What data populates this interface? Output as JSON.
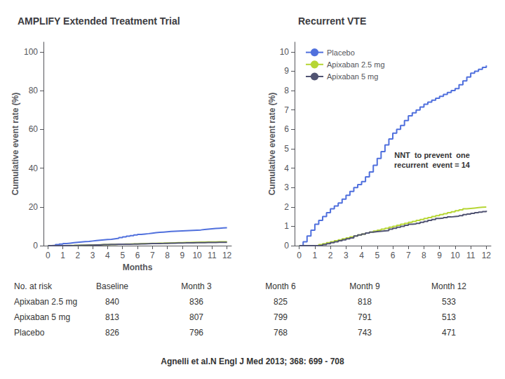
{
  "chart_data": [
    {
      "type": "line",
      "title": "AMPLIFY Extended Treatment Trial",
      "x_label": "Months",
      "y_label": "Cumulative event rate (%)",
      "x": [
        0,
        0.25,
        0.5,
        0.75,
        1.0,
        1.25,
        1.5,
        1.75,
        2.0,
        2.25,
        2.5,
        2.75,
        3.0,
        3.25,
        3.5,
        3.75,
        4.0,
        4.25,
        4.5,
        4.75,
        5.0,
        5.25,
        5.5,
        5.75,
        6.0,
        6.25,
        6.5,
        6.75,
        7.0,
        7.25,
        7.5,
        7.75,
        8.0,
        8.25,
        8.5,
        8.75,
        9.0,
        9.25,
        9.5,
        9.75,
        10.0,
        10.25,
        10.5,
        10.75,
        11.0,
        11.25,
        11.5,
        11.75,
        12.0
      ],
      "series": [
        {
          "name": "Placebo",
          "values": [
            0,
            0.2,
            0.5,
            0.8,
            1.1,
            1.3,
            1.5,
            1.7,
            1.9,
            2.05,
            2.2,
            2.4,
            2.6,
            2.8,
            3.0,
            3.15,
            3.3,
            3.55,
            3.8,
            4.15,
            4.5,
            4.85,
            5.2,
            5.5,
            5.8,
            6.0,
            6.2,
            6.45,
            6.7,
            6.85,
            7.0,
            7.15,
            7.3,
            7.4,
            7.5,
            7.6,
            7.7,
            7.8,
            7.9,
            8.0,
            8.1,
            8.3,
            8.5,
            8.7,
            8.9,
            9.0,
            9.1,
            9.2,
            9.3
          ]
        },
        {
          "name": "Apixaban 2.5 mg",
          "values": [
            0,
            0.0,
            0.0,
            0.0,
            0.0,
            0.05,
            0.1,
            0.15,
            0.2,
            0.25,
            0.3,
            0.35,
            0.4,
            0.45,
            0.5,
            0.55,
            0.6,
            0.65,
            0.7,
            0.75,
            0.8,
            0.85,
            0.9,
            0.95,
            1.0,
            1.05,
            1.1,
            1.15,
            1.2,
            1.25,
            1.3,
            1.35,
            1.4,
            1.45,
            1.5,
            1.55,
            1.6,
            1.65,
            1.7,
            1.75,
            1.8,
            1.85,
            1.9,
            1.92,
            1.94,
            1.96,
            1.98,
            1.99,
            2.0
          ]
        },
        {
          "name": "Apixaban 5 mg",
          "values": [
            0,
            0.0,
            0.0,
            0.0,
            0.0,
            0.02,
            0.05,
            0.1,
            0.15,
            0.2,
            0.25,
            0.3,
            0.35,
            0.4,
            0.5,
            0.55,
            0.6,
            0.65,
            0.7,
            0.72,
            0.74,
            0.76,
            0.78,
            0.85,
            0.9,
            0.95,
            1.0,
            1.05,
            1.1,
            1.12,
            1.15,
            1.2,
            1.25,
            1.3,
            1.35,
            1.4,
            1.42,
            1.45,
            1.48,
            1.5,
            1.52,
            1.55,
            1.6,
            1.63,
            1.67,
            1.7,
            1.73,
            1.76,
            1.8
          ]
        }
      ],
      "line_style": "step-post",
      "xlim": [
        -0.3,
        12.3
      ],
      "xticks": [
        0,
        1,
        2,
        3,
        4,
        5,
        6,
        7,
        8,
        9,
        10,
        11,
        12
      ],
      "ylim": [
        0,
        105
      ],
      "yticks": [
        0,
        20,
        40,
        60,
        80,
        100
      ],
      "grid": false,
      "at_risk": {
        "header": [
          "No. at risk",
          "Baseline",
          "Month 3",
          "Month 6",
          "Month 9",
          "Month 12"
        ],
        "rows": [
          {
            "label": "Apixaban 2.5 mg",
            "values": [
              840,
              836,
              825,
              818,
              533
            ]
          },
          {
            "label": "Apixaban 5 mg",
            "values": [
              813,
              807,
              799,
              791,
              513
            ]
          },
          {
            "label": "Placebo",
            "values": [
              826,
              796,
              768,
              743,
              471
            ]
          }
        ]
      },
      "caption": "Agnelli et al.N Engl J Med 2013; 368: 699 - 708"
    },
    {
      "type": "line",
      "title": "Recurrent VTE",
      "y_label": "Cumulative event rate (%)",
      "x": [
        0,
        0.25,
        0.5,
        0.75,
        1.0,
        1.25,
        1.5,
        1.75,
        2.0,
        2.25,
        2.5,
        2.75,
        3.0,
        3.25,
        3.5,
        3.75,
        4.0,
        4.25,
        4.5,
        4.75,
        5.0,
        5.25,
        5.5,
        5.75,
        6.0,
        6.25,
        6.5,
        6.75,
        7.0,
        7.25,
        7.5,
        7.75,
        8.0,
        8.25,
        8.5,
        8.75,
        9.0,
        9.25,
        9.5,
        9.75,
        10.0,
        10.25,
        10.5,
        10.75,
        11.0,
        11.25,
        11.5,
        11.75,
        12.0
      ],
      "series": [
        {
          "name": "Placebo",
          "values": [
            0,
            0.2,
            0.5,
            0.8,
            1.1,
            1.3,
            1.5,
            1.7,
            1.9,
            2.05,
            2.2,
            2.4,
            2.6,
            2.8,
            3.0,
            3.15,
            3.3,
            3.55,
            3.8,
            4.15,
            4.5,
            4.85,
            5.2,
            5.5,
            5.8,
            6.0,
            6.2,
            6.45,
            6.7,
            6.85,
            7.0,
            7.15,
            7.3,
            7.4,
            7.5,
            7.6,
            7.7,
            7.8,
            7.9,
            8.0,
            8.1,
            8.3,
            8.5,
            8.7,
            8.9,
            9.0,
            9.1,
            9.2,
            9.3
          ]
        },
        {
          "name": "Apixaban 2.5 mg",
          "values": [
            0,
            0.0,
            0.0,
            0.0,
            0.0,
            0.05,
            0.1,
            0.15,
            0.2,
            0.25,
            0.3,
            0.35,
            0.4,
            0.45,
            0.5,
            0.55,
            0.6,
            0.65,
            0.7,
            0.75,
            0.8,
            0.85,
            0.9,
            0.95,
            1.0,
            1.05,
            1.1,
            1.15,
            1.2,
            1.25,
            1.3,
            1.35,
            1.4,
            1.45,
            1.5,
            1.55,
            1.6,
            1.65,
            1.7,
            1.75,
            1.8,
            1.85,
            1.9,
            1.92,
            1.94,
            1.96,
            1.98,
            1.99,
            2.0
          ]
        },
        {
          "name": "Apixaban 5 mg",
          "values": [
            0,
            0.0,
            0.0,
            0.0,
            0.0,
            0.02,
            0.05,
            0.1,
            0.15,
            0.2,
            0.25,
            0.3,
            0.35,
            0.4,
            0.5,
            0.55,
            0.6,
            0.65,
            0.7,
            0.72,
            0.74,
            0.76,
            0.78,
            0.85,
            0.9,
            0.95,
            1.0,
            1.05,
            1.1,
            1.12,
            1.15,
            1.2,
            1.25,
            1.3,
            1.35,
            1.4,
            1.42,
            1.45,
            1.48,
            1.5,
            1.52,
            1.55,
            1.6,
            1.63,
            1.67,
            1.7,
            1.73,
            1.76,
            1.8
          ]
        }
      ],
      "line_style": "step-post",
      "xlim": [
        -0.3,
        12.3
      ],
      "xticks": [
        0,
        1,
        2,
        3,
        4,
        5,
        6,
        7,
        8,
        9,
        10,
        11,
        12
      ],
      "ylim": [
        0,
        10.5
      ],
      "yticks": [
        0,
        1,
        2,
        3,
        4,
        5,
        6,
        7,
        8,
        9,
        10
      ],
      "grid": false,
      "legend": "upper left",
      "annotations": [
        "NNT  to prevent  one\nrecurrent  event = 14"
      ]
    }
  ]
}
